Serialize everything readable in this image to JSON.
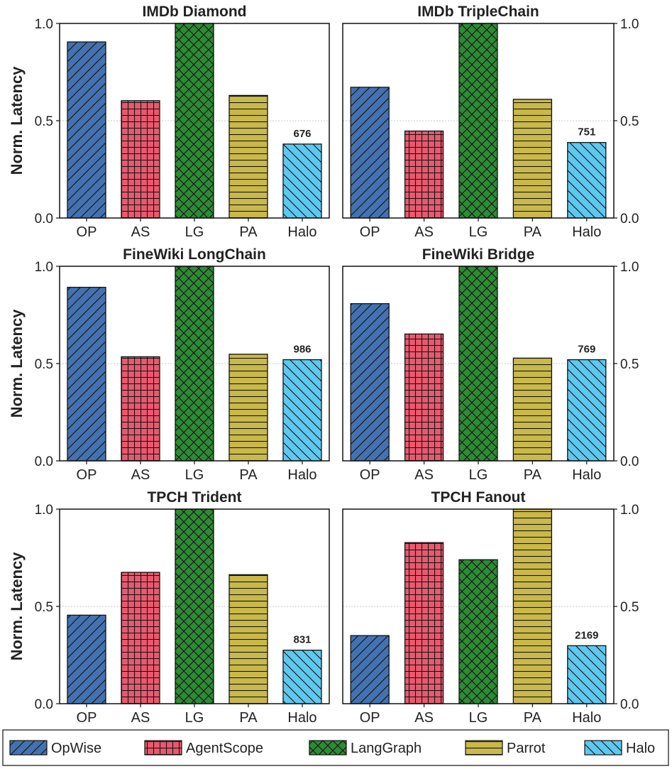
{
  "chart_data": {
    "type": "bar",
    "legend_position": "bottom",
    "series_legend": [
      {
        "key": "OP",
        "name": "OpWise",
        "color": "#4472b0",
        "pattern": "diag-fwd"
      },
      {
        "key": "AS",
        "name": "AgentScope",
        "color": "#e8596e",
        "pattern": "grid"
      },
      {
        "key": "LG",
        "name": "LangGraph",
        "color": "#2e8b35",
        "pattern": "cross"
      },
      {
        "key": "PA",
        "name": "Parrot",
        "color": "#c9b84a",
        "pattern": "horiz"
      },
      {
        "key": "Halo",
        "name": "Halo",
        "color": "#5ec8ef",
        "pattern": "diag-back"
      }
    ],
    "ylabel": "Norm. Latency",
    "ylim": [
      0,
      1.0
    ],
    "yticks": [
      "0.0",
      "0.5",
      "1.0"
    ],
    "categories": [
      "OP",
      "AS",
      "LG",
      "PA",
      "Halo"
    ],
    "panels": [
      {
        "title": "IMDb Diamond",
        "values": [
          0.905,
          0.603,
          1.0,
          0.63,
          0.38
        ],
        "annotation": "676",
        "yaxis_side": "left"
      },
      {
        "title": "IMDb TripleChain",
        "values": [
          0.672,
          0.447,
          1.0,
          0.61,
          0.388
        ],
        "annotation": "751",
        "yaxis_side": "right"
      },
      {
        "title": "FineWiki LongChain",
        "values": [
          0.892,
          0.535,
          1.0,
          0.548,
          0.52
        ],
        "annotation": "986",
        "yaxis_side": "left"
      },
      {
        "title": "FineWiki Bridge",
        "values": [
          0.808,
          0.652,
          1.0,
          0.528,
          0.52
        ],
        "annotation": "769",
        "yaxis_side": "right"
      },
      {
        "title": "TPCH Trident",
        "values": [
          0.455,
          0.675,
          1.0,
          0.663,
          0.275
        ],
        "annotation": "831",
        "yaxis_side": "left"
      },
      {
        "title": "TPCH Fanout",
        "values": [
          0.35,
          0.828,
          0.74,
          1.0,
          0.298
        ],
        "annotation": "2169",
        "yaxis_side": "right"
      }
    ]
  }
}
